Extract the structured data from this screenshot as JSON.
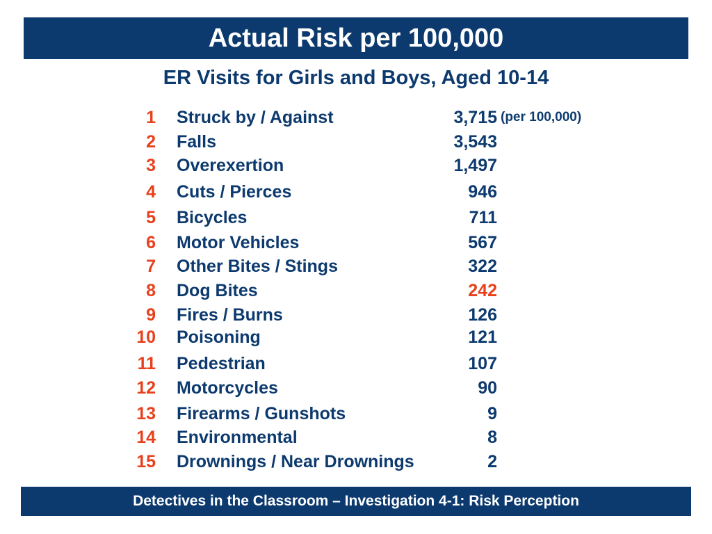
{
  "title": "Actual Risk per 100,000",
  "subtitle": "ER Visits for Girls and Boys, Aged 10-14",
  "unit_note": "(per 100,000)",
  "footer": "Detectives in the Classroom – Investigation 4-1:  Risk Perception",
  "colors": {
    "navy": "#0d3a6e",
    "accent": "#e8401c"
  },
  "rows": [
    {
      "rank": "1",
      "label": "Struck by / Against",
      "value": "3,715"
    },
    {
      "rank": "2",
      "label": "Falls",
      "value": "3,543"
    },
    {
      "rank": "3",
      "label": "Overexertion",
      "value": "1,497"
    },
    {
      "rank": "4",
      "label": "Cuts / Pierces",
      "value": "946"
    },
    {
      "rank": "5",
      "label": "Bicycles",
      "value": "711"
    },
    {
      "rank": "6",
      "label": "Motor Vehicles",
      "value": "567"
    },
    {
      "rank": "7",
      "label": "Other Bites / Stings",
      "value": "322"
    },
    {
      "rank": "8",
      "label": "Dog Bites",
      "value": "242",
      "highlight": true
    },
    {
      "rank": "9",
      "label": "Fires / Burns",
      "value": "126"
    },
    {
      "rank": "10",
      "label": "Poisoning",
      "value": "121"
    },
    {
      "rank": "11",
      "label": "Pedestrian",
      "value": "107"
    },
    {
      "rank": "12",
      "label": "Motorcycles",
      "value": "90"
    },
    {
      "rank": "13",
      "label": "Firearms / Gunshots",
      "value": "9"
    },
    {
      "rank": "14",
      "label": "Environmental",
      "value": "8"
    },
    {
      "rank": "15",
      "label": "Drownings / Near Drownings",
      "value": "2"
    }
  ]
}
